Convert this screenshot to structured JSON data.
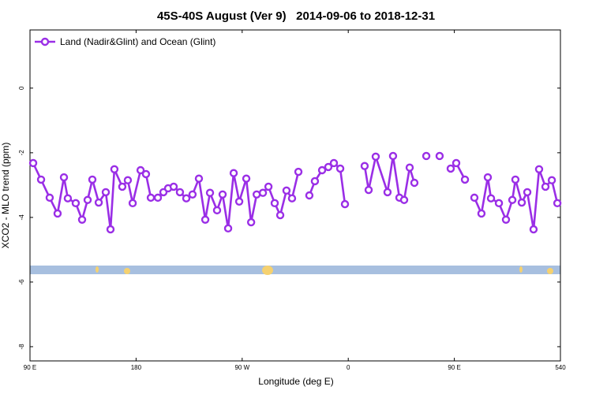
{
  "chart_data": {
    "type": "line",
    "title": "45S-40S August (Ver 9)   2014-09-06 to 2018-12-31",
    "x_label": "Longitude (deg E)",
    "y_label": "XCO2 - MLO trend (ppm)",
    "legend_position": "top-left",
    "xlim": [
      90,
      540
    ],
    "ylim": [
      -8.44,
      1.8
    ],
    "xticks": [
      {
        "value": 90,
        "label": "90 E"
      },
      180,
      {
        "value": 270,
        "label": "90 W"
      },
      {
        "value": 360,
        "label": "0"
      },
      {
        "value": 450,
        "label": "90 E"
      },
      540
    ],
    "yticks": [
      0,
      -2,
      -4,
      -6,
      -8
    ],
    "grid": false,
    "x": [
      92.7,
      99.4,
      106.7,
      113.4,
      118.8,
      122.1,
      128.8,
      134.2,
      138.9,
      142.9,
      148.3,
      154.3,
      158.3,
      161.6,
      168.3,
      173.0,
      177.1,
      183.8,
      188.4,
      192.5,
      198.5,
      203.2,
      207.2,
      211.9,
      217.2,
      222.6,
      227.9,
      233.3,
      238.7,
      242.7,
      248.7,
      253.4,
      258.1,
      262.8,
      267.5,
      273.5,
      277.6,
      282.3,
      287.6,
      292.3,
      297.6,
      302.3,
      307.6,
      312.3,
      317.7,
      322.4,
      327.0,
      331.7,
      337.8,
      343.1,
      347.8,
      353.2,
      357.2,
      365.9,
      373.9,
      377.3,
      383.3,
      393.3,
      398.0,
      403.4,
      407.4,
      412.1,
      416.1,
      420.8,
      426.2,
      431.5,
      437.5,
      442.2,
      446.9,
      451.6,
      459.0,
      463.0,
      467.0,
      473.0,
      478.4,
      481.1,
      487.8,
      493.8,
      499.2,
      501.8,
      507.2,
      511.9,
      517.2,
      521.9,
      527.3,
      532.7,
      537.4
    ],
    "series": [
      {
        "name": "Land (Nadir&Glint) and Ocean (Glint)",
        "color": "#9a2ee6",
        "values": [
          -2.32,
          -2.83,
          -3.39,
          -3.88,
          -2.76,
          -3.41,
          -3.56,
          -4.07,
          -3.46,
          -2.83,
          -3.54,
          -3.22,
          -4.37,
          -2.51,
          -3.05,
          -2.85,
          -3.56,
          -2.54,
          -2.66,
          -3.39,
          -3.39,
          -3.22,
          -3.1,
          -3.05,
          -3.22,
          -3.41,
          -3.29,
          -2.8,
          -4.07,
          -3.24,
          -3.78,
          -3.29,
          -4.34,
          -2.63,
          -3.51,
          -2.8,
          -4.15,
          -3.29,
          -3.24,
          -3.05,
          -3.56,
          -3.93,
          -3.17,
          -3.41,
          -2.59,
          null,
          -3.32,
          -2.88,
          -2.54,
          -2.44,
          -2.32,
          -2.49,
          -3.59,
          null,
          -2.41,
          -3.15,
          -2.12,
          -3.22,
          -2.1,
          -3.39,
          -3.46,
          -2.46,
          -2.93,
          null,
          -2.1,
          null,
          -2.1,
          null,
          -2.49,
          -2.32,
          -2.83,
          null,
          -3.39,
          -3.88,
          -2.76,
          -3.41,
          -3.56,
          -4.07,
          -3.46,
          -2.83,
          -3.54,
          -3.22,
          -4.37,
          -2.51,
          -3.05,
          -2.85,
          -3.56
        ]
      }
    ]
  }
}
